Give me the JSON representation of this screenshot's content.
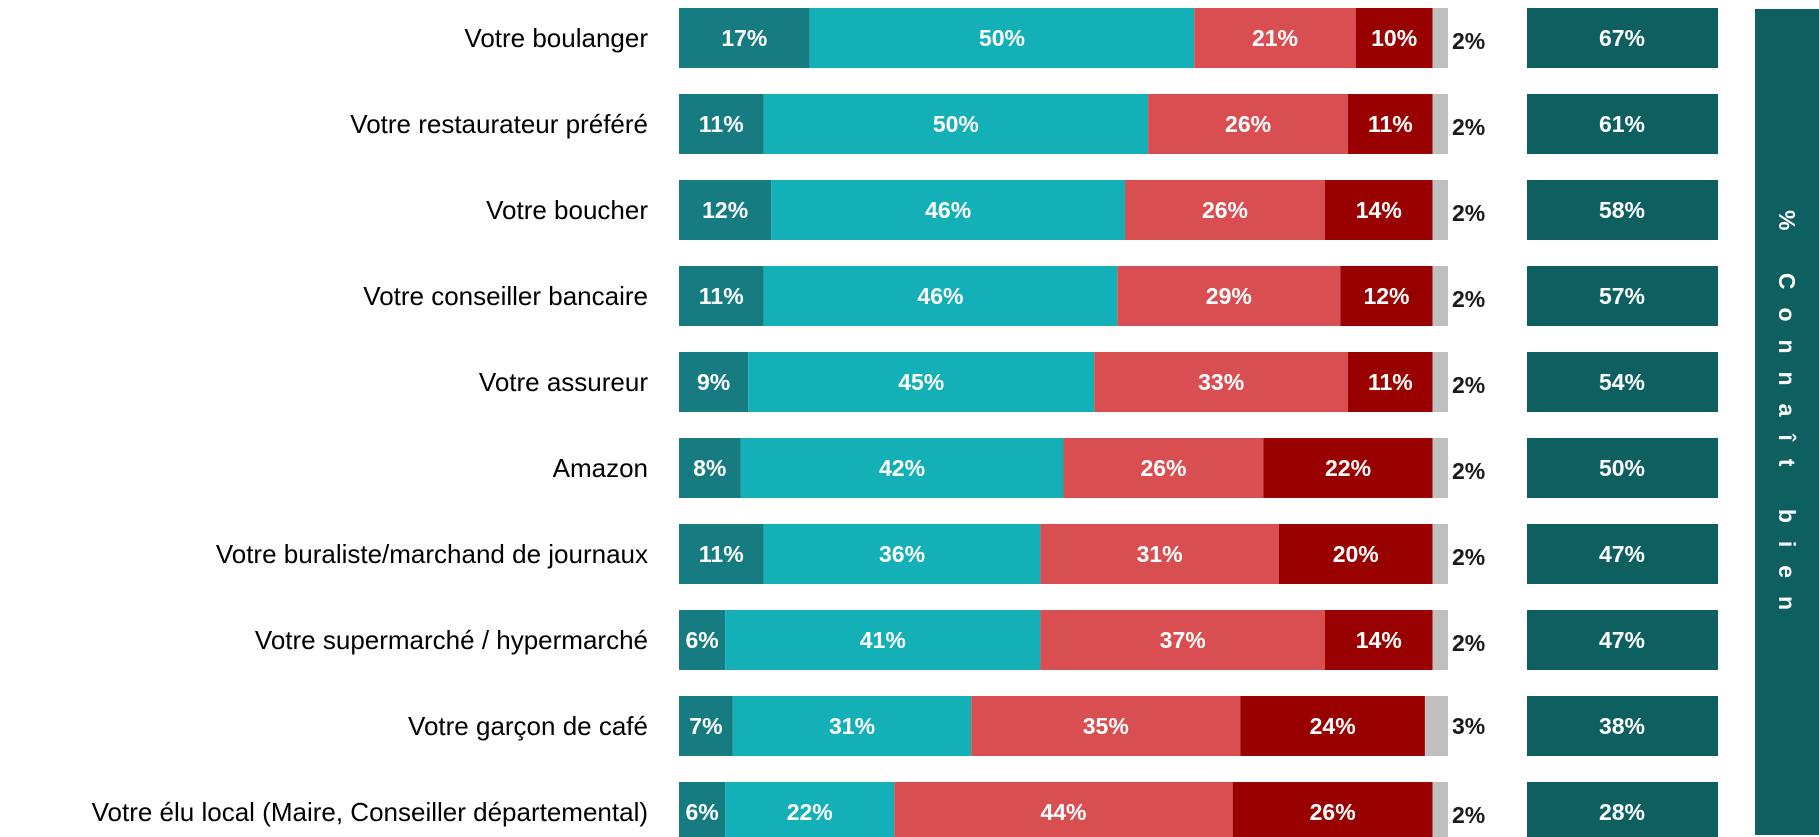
{
  "chart_data": {
    "type": "stacked-bar",
    "orientation": "horizontal",
    "categories": [
      "Votre boulanger",
      "Votre restaurateur préféré",
      "Votre boucher",
      "Votre conseiller bancaire",
      "Votre assureur",
      "Amazon",
      "Votre buraliste/marchand de journaux",
      "Votre supermarché / hypermarché",
      "Votre garçon de café",
      "Votre élu local (Maire, Conseiller départemental)"
    ],
    "xlim": [
      0,
      100
    ],
    "series": [
      {
        "color": "#177c81",
        "values": [
          17,
          11,
          12,
          11,
          9,
          8,
          11,
          6,
          7,
          6
        ],
        "value_labels": [
          "17%",
          "11%",
          "12%",
          "11%",
          "9%",
          "8%",
          "11%",
          "6%",
          "7%",
          "6%"
        ]
      },
      {
        "color": "#14b0b8",
        "values": [
          50,
          50,
          46,
          46,
          45,
          42,
          36,
          41,
          31,
          22
        ],
        "value_labels": [
          "50%",
          "50%",
          "46%",
          "46%",
          "45%",
          "42%",
          "36%",
          "41%",
          "31%",
          "22%"
        ]
      },
      {
        "color": "#d94f51",
        "values": [
          21,
          26,
          26,
          29,
          33,
          26,
          31,
          37,
          35,
          44
        ],
        "value_labels": [
          "21%",
          "26%",
          "26%",
          "29%",
          "33%",
          "26%",
          "31%",
          "37%",
          "35%",
          "44%"
        ]
      },
      {
        "color": "#990000",
        "values": [
          10,
          11,
          14,
          12,
          11,
          22,
          20,
          14,
          24,
          26
        ],
        "value_labels": [
          "10%",
          "11%",
          "14%",
          "12%",
          "11%",
          "22%",
          "20%",
          "14%",
          "24%",
          "26%"
        ]
      },
      {
        "color": "#bfbfbf",
        "values": [
          2,
          2,
          2,
          2,
          2,
          2,
          2,
          2,
          3,
          2
        ],
        "value_labels": [
          "2%",
          "2%",
          "2%",
          "2%",
          "2%",
          "2%",
          "2%",
          "2%",
          "3%",
          "2%"
        ]
      }
    ],
    "side": {
      "title": "% Connaît bien",
      "color": "#0d5f60",
      "values": [
        67,
        61,
        58,
        57,
        54,
        50,
        47,
        47,
        38,
        28
      ],
      "value_labels": [
        "67%",
        "61%",
        "58%",
        "57%",
        "54%",
        "50%",
        "47%",
        "47%",
        "38%",
        "28%"
      ]
    }
  }
}
